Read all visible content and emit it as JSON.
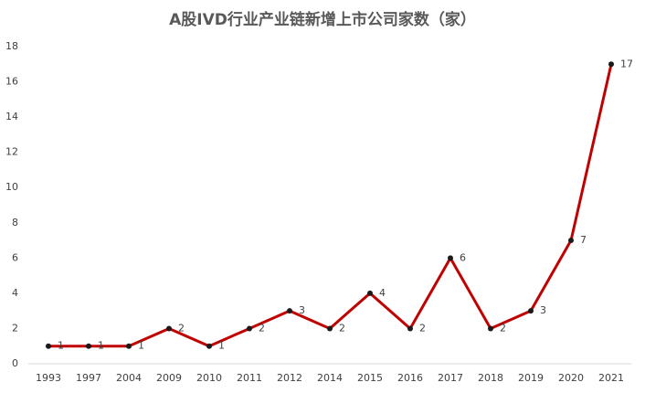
{
  "chart_data": {
    "type": "line",
    "title": "A股IVD行业产业链新增上市公司家数（家）",
    "categories": [
      "1993",
      "1997",
      "2004",
      "2009",
      "2010",
      "2011",
      "2012",
      "2014",
      "2015",
      "2016",
      "2017",
      "2018",
      "2019",
      "2020",
      "2021"
    ],
    "values": [
      1,
      1,
      1,
      2,
      1,
      2,
      3,
      2,
      4,
      2,
      6,
      2,
      3,
      7,
      17
    ],
    "color": "#c00000",
    "marker_color": "#1a1a1a",
    "ylim": [
      0,
      18
    ],
    "yticks": [
      0,
      2,
      4,
      6,
      8,
      10,
      12,
      14,
      16,
      18
    ],
    "grid": false
  }
}
